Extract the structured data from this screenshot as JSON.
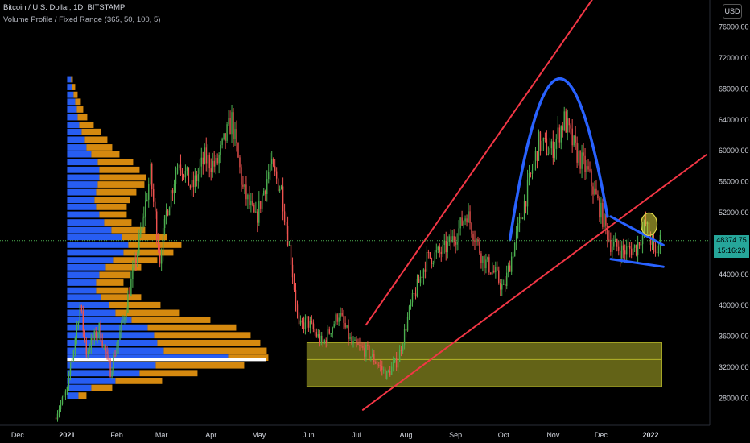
{
  "header": {
    "title": "Bitcoin / U.S. Dollar, 1D, BITSTAMP",
    "indicator": "Volume Profile / Fixed Range (365, 50, 100, 5)"
  },
  "currency_badge": "USD",
  "last_price": "48374.75",
  "countdown": "15:16:29",
  "colors": {
    "background": "#000000",
    "up": "#4caf50",
    "down": "#ef5350",
    "vp_up": "#2962ff",
    "vp_down": "#e09010",
    "trend": "#f23645",
    "arc": "#2962ff",
    "zone": "#b5b529",
    "price_tag": "#26a69a"
  },
  "chart_data": {
    "type": "candlestick",
    "title": "Bitcoin / U.S. Dollar, 1D, BITSTAMP",
    "y_ticks": [
      "76000.00",
      "72000.00",
      "68000.00",
      "64000.00",
      "60000.00",
      "56000.00",
      "52000.00",
      "48000.00",
      "44000.00",
      "40000.00",
      "36000.00",
      "32000.00",
      "28000.00"
    ],
    "y_tick_values": [
      76000,
      72000,
      68000,
      64000,
      60000,
      56000,
      52000,
      48000,
      44000,
      40000,
      36000,
      32000,
      28000
    ],
    "ylim": [
      24500,
      79500
    ],
    "x_ticks": [
      "Dec",
      "2021",
      "Feb",
      "Mar",
      "Apr",
      "May",
      "Jun",
      "Jul",
      "Aug",
      "Sep",
      "Oct",
      "Nov",
      "Dec",
      "2022"
    ],
    "x_tick_days": [
      -31,
      0,
      31,
      59,
      90,
      120,
      151,
      181,
      212,
      243,
      273,
      304,
      334,
      365
    ],
    "xlim": [
      -42,
      402
    ],
    "last_price": 48374.75,
    "closes_path": [
      {
        "day": -8,
        "price": 25500
      },
      {
        "day": 0,
        "price": 29000
      },
      {
        "day": 8,
        "price": 40000
      },
      {
        "day": 12,
        "price": 34000
      },
      {
        "day": 20,
        "price": 37000
      },
      {
        "day": 27,
        "price": 31500
      },
      {
        "day": 35,
        "price": 38000
      },
      {
        "day": 44,
        "price": 47000
      },
      {
        "day": 52,
        "price": 57000
      },
      {
        "day": 58,
        "price": 46000
      },
      {
        "day": 62,
        "price": 52000
      },
      {
        "day": 70,
        "price": 59000
      },
      {
        "day": 78,
        "price": 55000
      },
      {
        "day": 86,
        "price": 59000
      },
      {
        "day": 93,
        "price": 58000
      },
      {
        "day": 103,
        "price": 64000
      },
      {
        "day": 110,
        "price": 55000
      },
      {
        "day": 118,
        "price": 51000
      },
      {
        "day": 127,
        "price": 58000
      },
      {
        "day": 134,
        "price": 55000
      },
      {
        "day": 140,
        "price": 46000
      },
      {
        "day": 145,
        "price": 37000
      },
      {
        "day": 150,
        "price": 38000
      },
      {
        "day": 160,
        "price": 35000
      },
      {
        "day": 170,
        "price": 39000
      },
      {
        "day": 178,
        "price": 35000
      },
      {
        "day": 188,
        "price": 34000
      },
      {
        "day": 200,
        "price": 31000
      },
      {
        "day": 207,
        "price": 33000
      },
      {
        "day": 215,
        "price": 40000
      },
      {
        "day": 225,
        "price": 46000
      },
      {
        "day": 235,
        "price": 47000
      },
      {
        "day": 243,
        "price": 49000
      },
      {
        "day": 250,
        "price": 52000
      },
      {
        "day": 260,
        "price": 46000
      },
      {
        "day": 268,
        "price": 44000
      },
      {
        "day": 273,
        "price": 42000
      },
      {
        "day": 280,
        "price": 48000
      },
      {
        "day": 288,
        "price": 55000
      },
      {
        "day": 295,
        "price": 61000
      },
      {
        "day": 303,
        "price": 60000
      },
      {
        "day": 311,
        "price": 64000
      },
      {
        "day": 318,
        "price": 60000
      },
      {
        "day": 326,
        "price": 57000
      },
      {
        "day": 334,
        "price": 52000
      },
      {
        "day": 340,
        "price": 48000
      },
      {
        "day": 348,
        "price": 47000
      },
      {
        "day": 356,
        "price": 47500
      },
      {
        "day": 362,
        "price": 50500
      },
      {
        "day": 368,
        "price": 46500
      },
      {
        "day": 371,
        "price": 48374.75
      }
    ],
    "volume_profile": [
      {
        "price": 69200,
        "up": 5,
        "down": 2
      },
      {
        "price": 68200,
        "up": 6,
        "down": 4
      },
      {
        "price": 67200,
        "up": 8,
        "down": 5
      },
      {
        "price": 66300,
        "up": 10,
        "down": 7
      },
      {
        "price": 65300,
        "up": 12,
        "down": 8
      },
      {
        "price": 64300,
        "up": 13,
        "down": 12
      },
      {
        "price": 63300,
        "up": 15,
        "down": 18
      },
      {
        "price": 62400,
        "up": 18,
        "down": 24
      },
      {
        "price": 61400,
        "up": 22,
        "down": 28
      },
      {
        "price": 60400,
        "up": 24,
        "down": 32
      },
      {
        "price": 59500,
        "up": 30,
        "down": 35
      },
      {
        "price": 58500,
        "up": 38,
        "down": 44
      },
      {
        "price": 57500,
        "up": 40,
        "down": 50
      },
      {
        "price": 56500,
        "up": 40,
        "down": 58
      },
      {
        "price": 55600,
        "up": 38,
        "down": 58
      },
      {
        "price": 54600,
        "up": 36,
        "down": 50
      },
      {
        "price": 53600,
        "up": 34,
        "down": 44
      },
      {
        "price": 52700,
        "up": 36,
        "down": 38
      },
      {
        "price": 51700,
        "up": 40,
        "down": 34
      },
      {
        "price": 50700,
        "up": 46,
        "down": 34
      },
      {
        "price": 49700,
        "up": 55,
        "down": 42
      },
      {
        "price": 48800,
        "up": 68,
        "down": 56
      },
      {
        "price": 47800,
        "up": 76,
        "down": 66
      },
      {
        "price": 46800,
        "up": 70,
        "down": 62
      },
      {
        "price": 45800,
        "up": 58,
        "down": 54
      },
      {
        "price": 44900,
        "up": 48,
        "down": 44
      },
      {
        "price": 43900,
        "up": 40,
        "down": 38
      },
      {
        "price": 42900,
        "up": 36,
        "down": 34
      },
      {
        "price": 41900,
        "up": 36,
        "down": 40
      },
      {
        "price": 41000,
        "up": 42,
        "down": 50
      },
      {
        "price": 40000,
        "up": 52,
        "down": 64
      },
      {
        "price": 39000,
        "up": 60,
        "down": 80
      },
      {
        "price": 38100,
        "up": 80,
        "down": 98
      },
      {
        "price": 37100,
        "up": 100,
        "down": 110
      },
      {
        "price": 36100,
        "up": 108,
        "down": 120
      },
      {
        "price": 35100,
        "up": 112,
        "down": 128
      },
      {
        "price": 34100,
        "up": 120,
        "down": 128
      },
      {
        "price": 33200,
        "up": 200,
        "down": 50
      },
      {
        "price": 32200,
        "up": 110,
        "down": 110
      },
      {
        "price": 31200,
        "up": 90,
        "down": 72
      },
      {
        "price": 30200,
        "up": 60,
        "down": 58
      },
      {
        "price": 29300,
        "up": 30,
        "down": 26
      },
      {
        "price": 28300,
        "up": 14,
        "down": 10
      }
    ],
    "annotations": {
      "upper_channel": [
        {
          "day": 187,
          "price": 37500
        },
        {
          "day": 330,
          "price": 80000
        }
      ],
      "lower_channel": [
        {
          "day": 185,
          "price": 26500
        },
        {
          "day": 400,
          "price": 59500
        }
      ],
      "arc": [
        {
          "day": 277,
          "price": 48500
        },
        {
          "day": 307,
          "price": 69300
        },
        {
          "day": 338,
          "price": 51500
        }
      ],
      "support_line": [
        {
          "day": 340,
          "price": 46000
        },
        {
          "day": 373,
          "price": 45000
        }
      ],
      "resistance_line": [
        {
          "day": 340,
          "price": 51500
        },
        {
          "day": 373,
          "price": 47800
        }
      ],
      "poc_price": 33000,
      "zone": {
        "from_day": 150,
        "to_day": 372,
        "low": 29500,
        "high": 35200
      },
      "circle": {
        "day": 364,
        "price": 50500
      }
    }
  }
}
